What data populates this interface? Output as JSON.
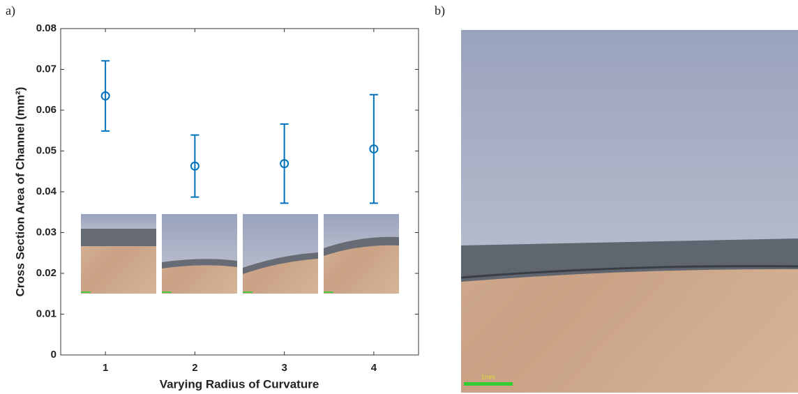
{
  "panel_labels": [
    "a)",
    "b)"
  ],
  "scale_bar_label": "1mm",
  "chart_data": {
    "type": "errorbar",
    "x": [
      1,
      2,
      3,
      4
    ],
    "values": [
      0.0635,
      0.0463,
      0.0469,
      0.0505
    ],
    "errors": [
      0.0086,
      0.0076,
      0.0097,
      0.0133
    ],
    "color": "#0072bd",
    "xlim": [
      0.5,
      4.5
    ],
    "xticks": [
      1,
      2,
      3,
      4
    ],
    "ylim": [
      0,
      0.08
    ],
    "yticks": [
      0,
      0.01,
      0.02,
      0.03,
      0.04,
      0.05,
      0.06,
      0.07,
      0.08
    ],
    "xlabel": "Varying Radius of Curvature",
    "ylabel": "Cross Section Area of Channel (mm²)"
  }
}
